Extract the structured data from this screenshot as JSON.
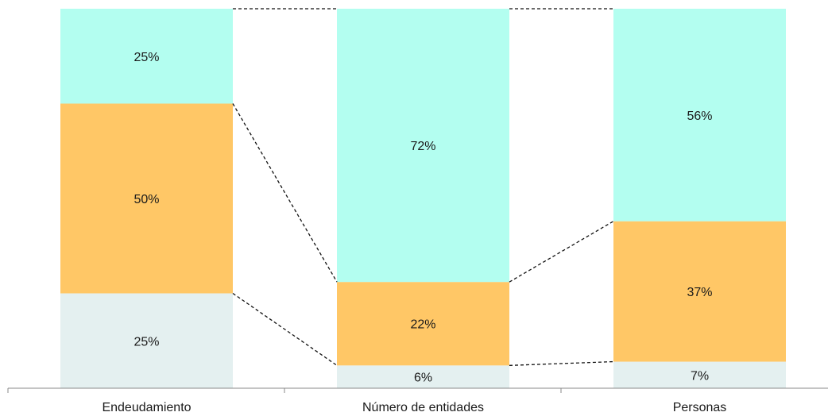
{
  "chart_data": {
    "type": "bar",
    "stacked": true,
    "normalized": true,
    "categories": [
      "Endeudamiento",
      "Número de entidades",
      "Personas"
    ],
    "series": [
      {
        "key": "bottom",
        "values": [
          25,
          6,
          7
        ],
        "labels": [
          "25%",
          "6%",
          "7%"
        ]
      },
      {
        "key": "middle",
        "values": [
          50,
          22,
          37
        ],
        "labels": [
          "50%",
          "22%",
          "37%"
        ]
      },
      {
        "key": "top",
        "values": [
          25,
          72,
          56
        ],
        "labels": [
          "25%",
          "72%",
          "56%"
        ]
      }
    ],
    "ylim": [
      0,
      100
    ],
    "connector_lines": "dashed",
    "legend": "none",
    "grid": false
  },
  "colors": {
    "bottom": "#e4f0f0",
    "middle": "#ffc766",
    "top": "#b3fef0",
    "connector": "#111111",
    "axis": "#888888"
  }
}
